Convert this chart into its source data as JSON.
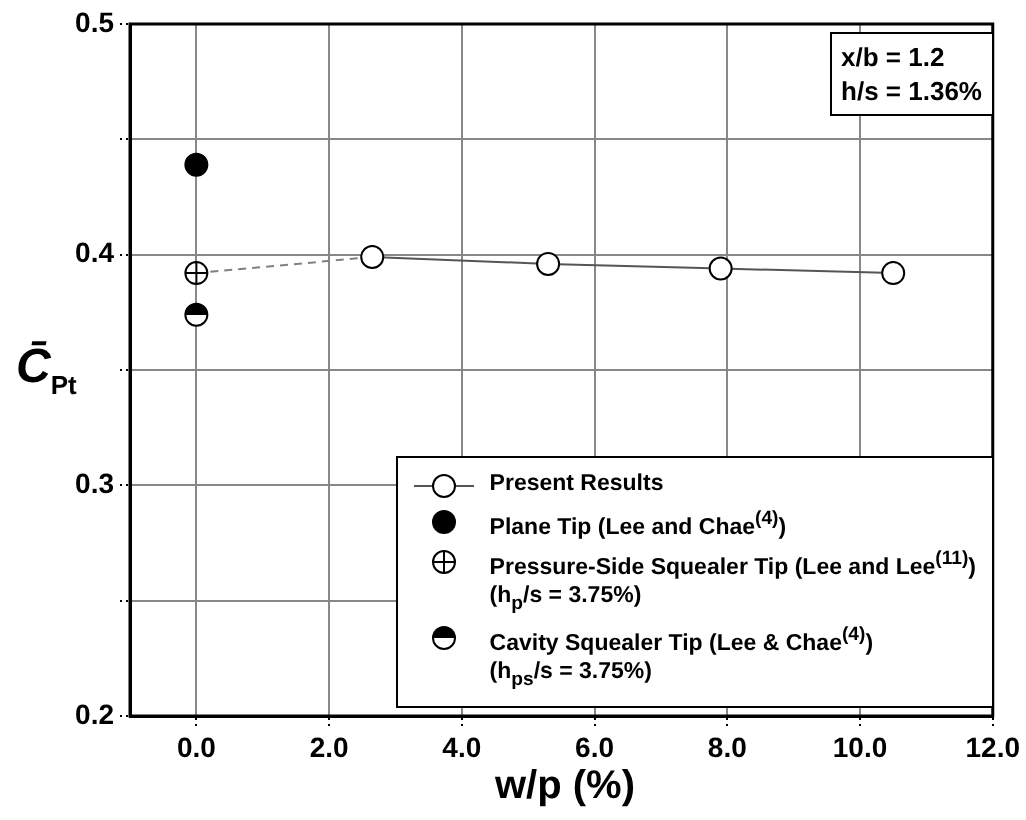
{
  "chart_data": {
    "type": "scatter",
    "xlabel": "w/p (%)",
    "ylabel": "C̄$_{Pt}$",
    "xlim": [
      -1,
      12
    ],
    "xticks": [
      {
        "value": 0,
        "label": "0.0"
      },
      {
        "value": 2,
        "label": "2.0"
      },
      {
        "value": 4,
        "label": "4.0"
      },
      {
        "value": 6,
        "label": "6.0"
      },
      {
        "value": 8,
        "label": "8.0"
      },
      {
        "value": 10,
        "label": "10.0"
      },
      {
        "value": 12,
        "label": "12.0"
      }
    ],
    "ylim": [
      0.2,
      0.5
    ],
    "yticks": [
      0.2,
      {
        "value": 0.25,
        "label": null
      },
      0.3,
      {
        "value": 0.35,
        "label": null
      },
      0.4,
      {
        "value": 0.45,
        "label": null
      },
      0.5
    ],
    "grid": true,
    "legend": "bottom right",
    "annotations": [
      "x/b = 1.2",
      "h/s = 1.36%"
    ],
    "series": [
      {
        "name": "Present Results",
        "type": "line",
        "marker": "circle",
        "line_style": "solid",
        "color": "#ffffff",
        "x": [
          2.65,
          5.3,
          7.9,
          10.5
        ],
        "values": [
          0.399,
          0.396,
          0.394,
          0.392
        ]
      },
      {
        "name": "Plane Tip (Lee and Chae$^{(4)}$)",
        "type": "scatter",
        "marker": "circle",
        "color": "#000000",
        "x": [
          0
        ],
        "values": [
          0.439
        ]
      },
      {
        "name": "Pressure-Side Squealer Tip (Lee and Lee$^{(11)}$)\n(h$_{p}$/s = 3.75%)",
        "type": "scatter",
        "marker": "circle-cross",
        "color": "#ffffff",
        "x": [
          0
        ],
        "values": [
          0.392
        ]
      },
      {
        "name": "Cavity Squealer Tip (Lee & Chae$^{(4)}$)\n(h$_{ps}$/s = 3.75%)",
        "type": "scatter",
        "marker": "half-circle",
        "color": "#000000",
        "x": [
          0
        ],
        "values": [
          0.374
        ]
      },
      {
        "type": "line",
        "line_style": "dashed",
        "color": "#808080",
        "x": [
          0,
          2.65
        ],
        "values": [
          0.392,
          0.399
        ]
      }
    ]
  }
}
